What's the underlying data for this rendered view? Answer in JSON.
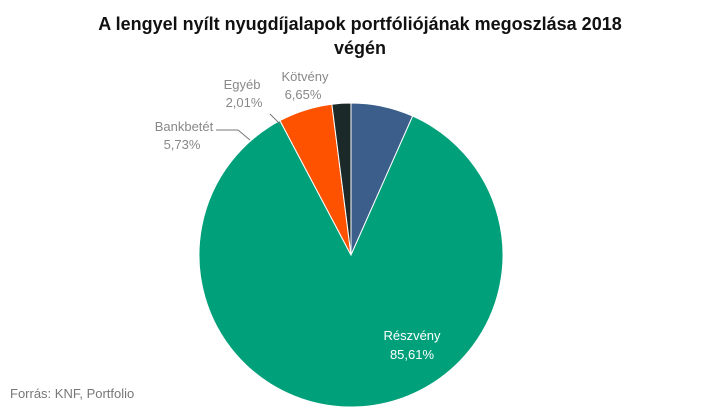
{
  "chart_data": {
    "type": "pie",
    "title_line1": "A lengyel nyílt nyugdíjalapok portfóliójának megoszlása 2018",
    "title_line2": "végén",
    "slices": [
      {
        "name": "Kötvény",
        "value": 6.65,
        "label": "6,65%",
        "color": "#3b5f8a"
      },
      {
        "name": "Részvény",
        "value": 85.61,
        "label": "85,61%",
        "color": "#00a07a"
      },
      {
        "name": "Bankbetét",
        "value": 5.73,
        "label": "5,73%",
        "color": "#ff5200"
      },
      {
        "name": "Egyéb",
        "value": 2.01,
        "label": "2,01%",
        "color": "#1b2a28"
      }
    ],
    "legend": "none"
  },
  "source": "Forrás: KNF, Portfolio"
}
